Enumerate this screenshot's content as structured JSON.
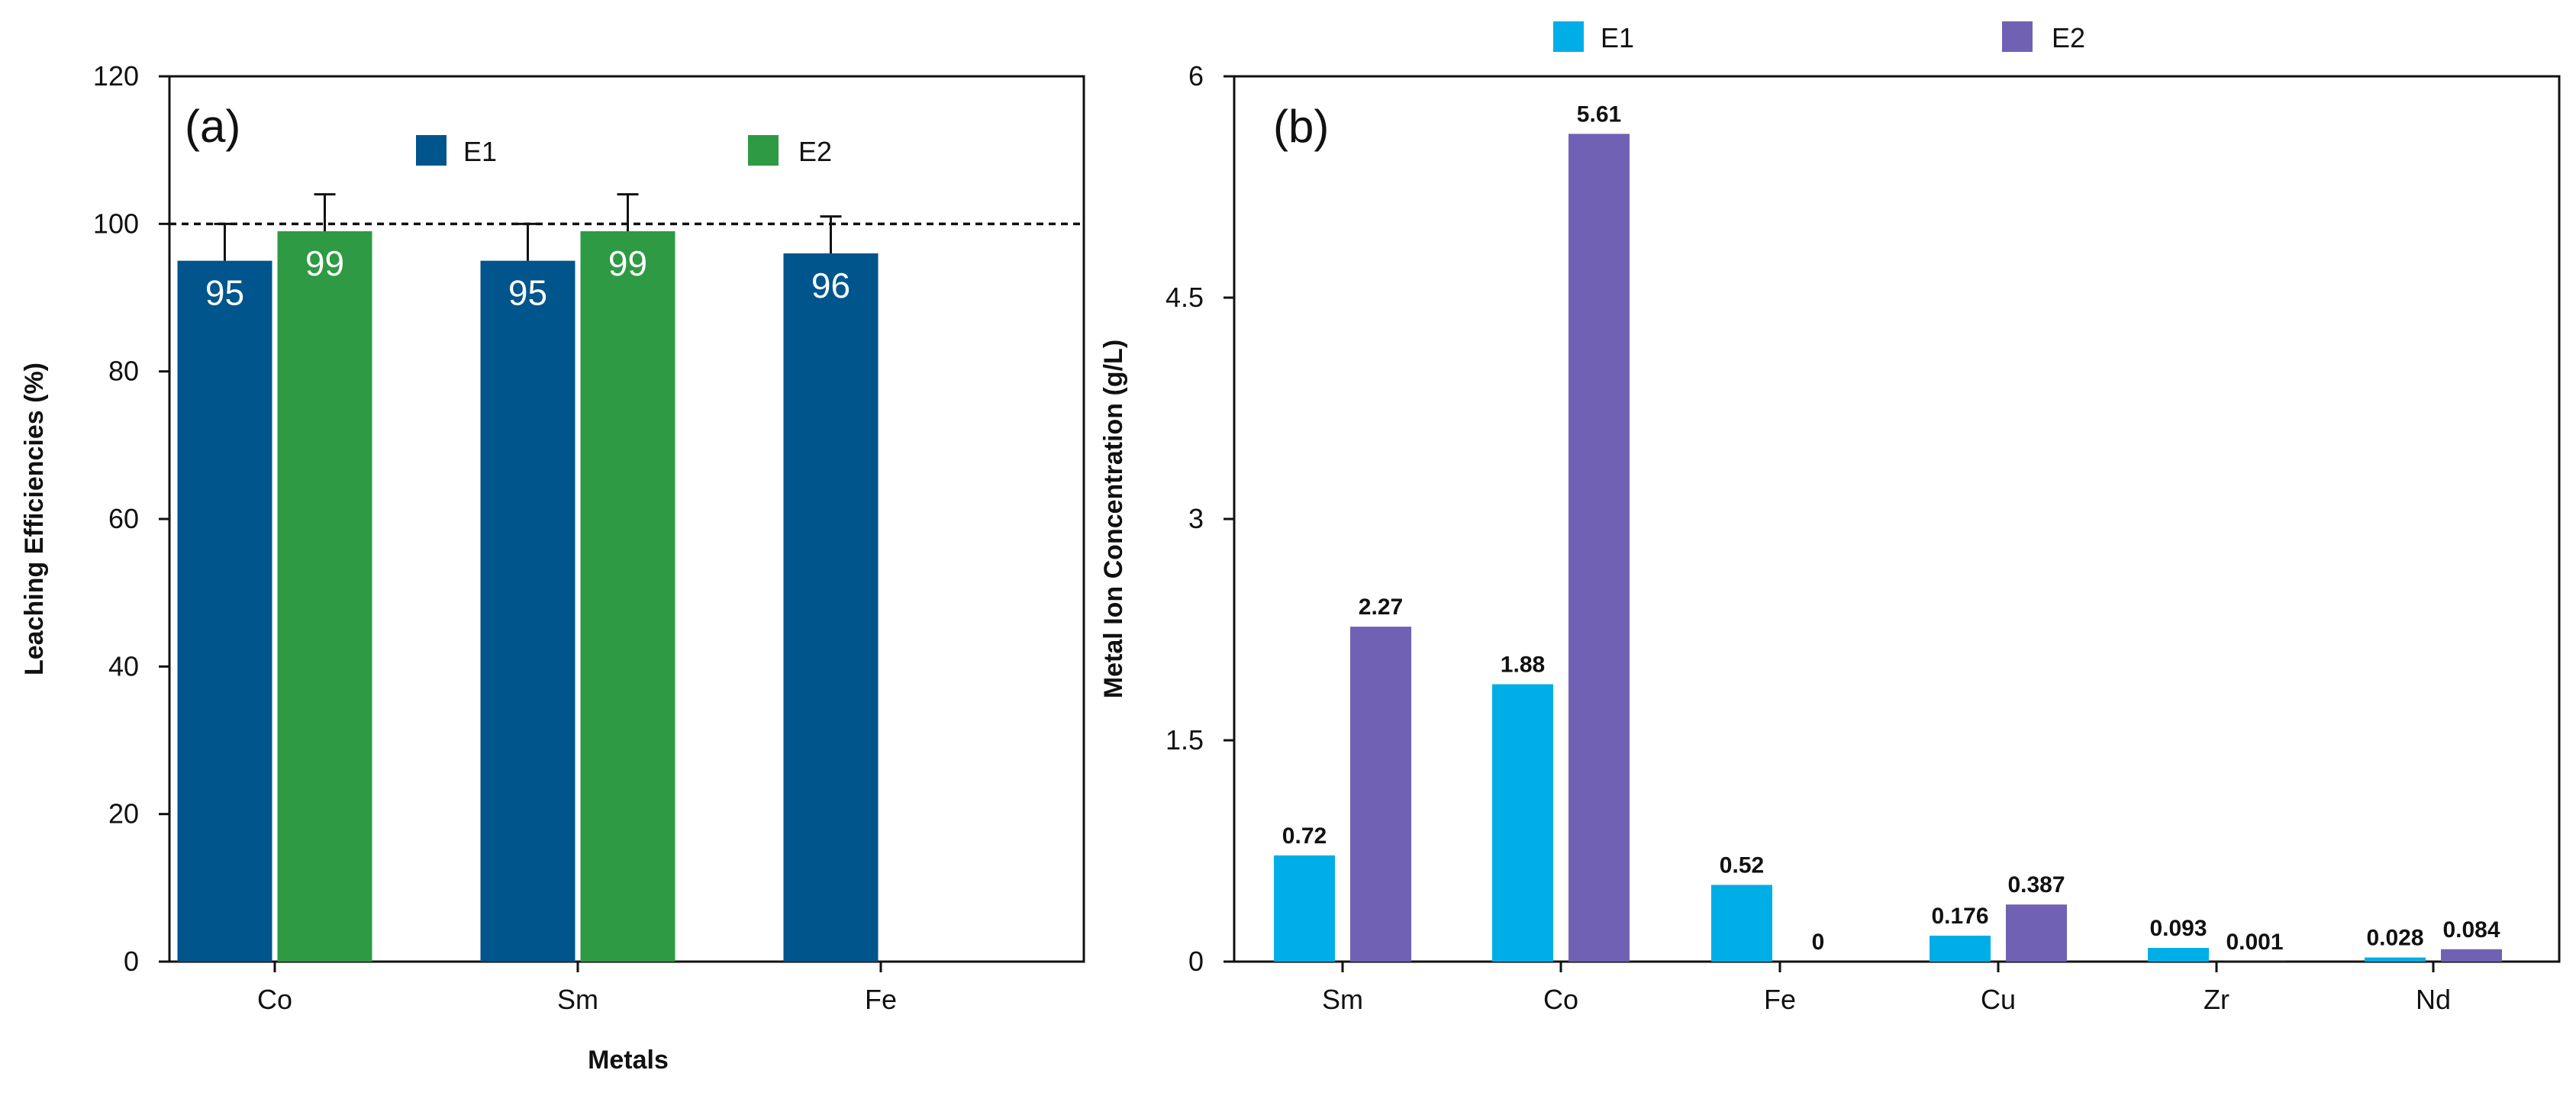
{
  "chart_data": [
    {
      "panel": "(a)",
      "type": "bar",
      "categories": [
        "Co",
        "Sm",
        "Fe"
      ],
      "series": [
        {
          "name": "E1",
          "color": "#00558c",
          "values": [
            95,
            95,
            96
          ],
          "errors": [
            5,
            5,
            5
          ]
        },
        {
          "name": "E2",
          "color": "#2e9a44",
          "values": [
            99,
            99,
            null
          ],
          "errors": [
            5,
            5,
            null
          ]
        }
      ],
      "bar_labels": {
        "E1": [
          "95",
          "95",
          "96"
        ],
        "E2": [
          "99",
          "99",
          ""
        ]
      },
      "xlabel": "Metals",
      "ylabel": "Leaching Efficiencies (%)",
      "ylim": [
        0,
        120
      ],
      "yticks": [
        "0",
        "20",
        "40",
        "60",
        "80",
        "100",
        "120"
      ],
      "reference_line": 100
    },
    {
      "panel": "(b)",
      "type": "bar",
      "categories": [
        "Sm",
        "Co",
        "Fe",
        "Cu",
        "Zr",
        "Nd"
      ],
      "series": [
        {
          "name": "E1",
          "color": "#00aee7",
          "values": [
            0.72,
            1.88,
            0.52,
            0.176,
            0.093,
            0.028
          ]
        },
        {
          "name": "E2",
          "color": "#7161b5",
          "values": [
            2.27,
            5.61,
            0,
            0.387,
            0.001,
            0.084
          ]
        }
      ],
      "bar_labels": {
        "E1": [
          "0.72",
          "1.88",
          "0.52",
          "0.176",
          "0.093",
          "0.028"
        ],
        "E2": [
          "2.27",
          "5.61",
          "0",
          "0.387",
          "0.001",
          "0.084"
        ]
      },
      "xlabel": "",
      "ylabel": "Metal Ion Concentration (g/L)",
      "ylim": [
        0,
        6
      ],
      "yticks": [
        "0",
        "1.5",
        "3",
        "4.5",
        "6"
      ]
    }
  ]
}
